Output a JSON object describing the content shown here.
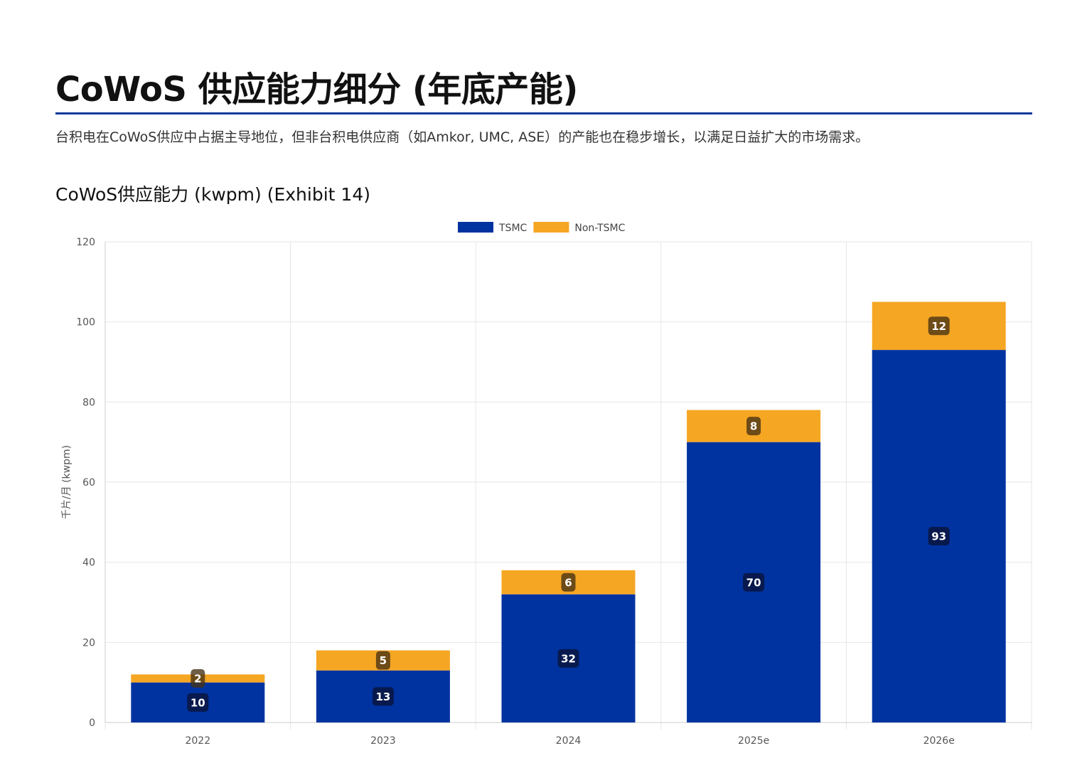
{
  "header": {
    "title": "CoWoS 供应能力细分 (年底产能)",
    "subtitle": "台积电在CoWoS供应中占据主导地位，但非台积电供应商（如Amkor, UMC, ASE）的产能也在稳步增长，以满足日益扩大的市场需求。"
  },
  "chart_data": {
    "type": "bar",
    "stacked": true,
    "title": "CoWoS供应能力 (kwpm) (Exhibit 14)",
    "xlabel": "",
    "ylabel": "千片/月 (kwpm)",
    "ylim": [
      0,
      120
    ],
    "yticks": [
      0,
      20,
      40,
      60,
      80,
      100,
      120
    ],
    "grid": true,
    "legend_position": "top-center",
    "categories": [
      "2022",
      "2023",
      "2024",
      "2025e",
      "2026e"
    ],
    "series": [
      {
        "name": "TSMC",
        "color": "#0033a0",
        "values": [
          10,
          13,
          32,
          70,
          93
        ]
      },
      {
        "name": "Non-TSMC",
        "color": "#f5a623",
        "values": [
          2,
          5,
          6,
          8,
          12
        ]
      }
    ],
    "data_labels": true
  }
}
